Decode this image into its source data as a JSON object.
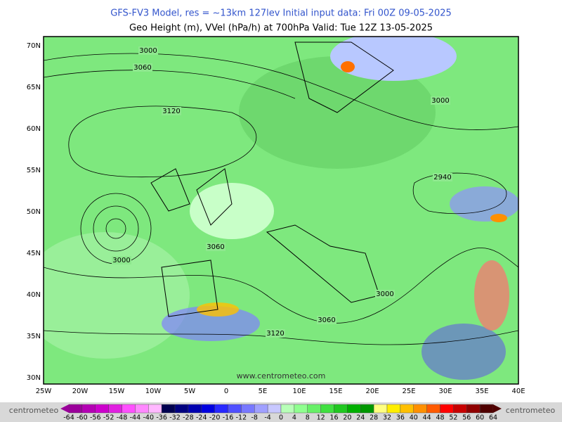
{
  "header": {
    "line1": "GFS-FV3 Model, res = ~13km 127lev    Initial input data: Fri 00Z 09-05-2025",
    "line2": "Geo Height (m), VVel (hPa/h) at 700hPa  Valid: Tue 12Z 13-05-2025"
  },
  "map": {
    "lat_labels": [
      "30N",
      "35N",
      "40N",
      "45N",
      "50N",
      "55N",
      "60N",
      "65N",
      "70N"
    ],
    "lon_labels": [
      "25W",
      "20W",
      "15W",
      "10W",
      "5W",
      "0",
      "5E",
      "10E",
      "15E",
      "20E",
      "25E",
      "30E",
      "35E",
      "40E"
    ],
    "contour_labels": [
      "3000",
      "3060",
      "3120",
      "3000",
      "2940",
      "3060",
      "3000",
      "3000",
      "3060",
      "3120"
    ],
    "watermark": "www.centrometeo.com"
  },
  "colorbar": {
    "labels": [
      -64,
      -60,
      -56,
      -52,
      -48,
      -44,
      -40,
      -36,
      -32,
      -28,
      -24,
      -20,
      -16,
      -12,
      -8,
      -4,
      0,
      4,
      8,
      12,
      16,
      20,
      24,
      28,
      32,
      36,
      40,
      44,
      48,
      52,
      56,
      60,
      64
    ],
    "colors": [
      "#9b009b",
      "#b400b4",
      "#cc00cc",
      "#e020e0",
      "#ff50ff",
      "#ff88ff",
      "#ffb8ff",
      "#000050",
      "#000080",
      "#0000b0",
      "#0000e0",
      "#2828ff",
      "#5050ff",
      "#7878ff",
      "#a0a0ff",
      "#c8c8ff",
      "#b8ffb8",
      "#90ff90",
      "#68f068",
      "#40e040",
      "#20c820",
      "#00b000",
      "#009800",
      "#ffff80",
      "#ffee00",
      "#ffc000",
      "#ff9000",
      "#ff5a00",
      "#ff0000",
      "#c80000",
      "#900000",
      "#500000"
    ],
    "brand": "centrometeo"
  }
}
